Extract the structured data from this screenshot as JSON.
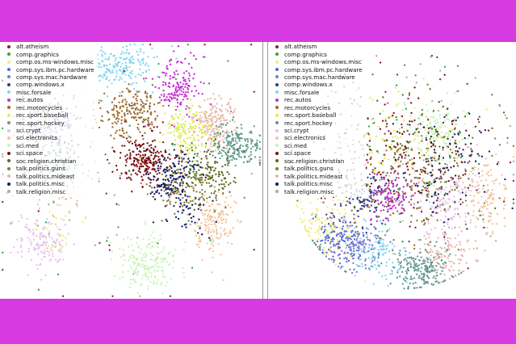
{
  "colors": {
    "background": "#d63ae0",
    "canvas": "#ffffff"
  },
  "classes": [
    {
      "name": "alt.atheism",
      "color": "#8c1c4a"
    },
    {
      "name": "comp.graphics",
      "color": "#2fa73b"
    },
    {
      "name": "comp.os.ms-windows.misc",
      "color": "#f3ed7c"
    },
    {
      "name": "comp.sys.ibm.pc.hardware",
      "color": "#4f6cd6"
    },
    {
      "name": "comp.sys.mac.hardware",
      "color": "#7e7ad8"
    },
    {
      "name": "comp.windows.x",
      "color": "#2f3f86"
    },
    {
      "name": "misc.forsale",
      "color": "#83d6ee"
    },
    {
      "name": "rec.autos",
      "color": "#c42ed4"
    },
    {
      "name": "rec.motorcycles",
      "color": "#9a6a2a"
    },
    {
      "name": "rec.sport.baseball",
      "color": "#dcee5a"
    },
    {
      "name": "rec.sport.hockey",
      "color": "#5f9a8e"
    },
    {
      "name": "sci.crypt",
      "color": "#e7c0f0"
    },
    {
      "name": "sci.electronics",
      "color": "#f3c49a"
    },
    {
      "name": "sci.med",
      "color": "#c9f4b6"
    },
    {
      "name": "sci.space",
      "color": "#7a0e10"
    },
    {
      "name": "soc.religion.christian",
      "color": "#5b6b1e"
    },
    {
      "name": "talk.politics.guns",
      "color": "#8a7a30"
    },
    {
      "name": "talk.politics.mideast",
      "color": "#e9b6b0"
    },
    {
      "name": "talk.politics.misc",
      "color": "#101a66"
    },
    {
      "name": "talk.religion.misc",
      "color": "#aaaaaa"
    }
  ],
  "chart_data": [
    {
      "type": "scatter",
      "title": "",
      "xlabel": "",
      "ylabel": "",
      "axes": "hidden",
      "grid": false,
      "legend_position": "top-left",
      "x_range": [
        0,
        1
      ],
      "y_range": [
        0,
        1
      ],
      "series": [
        {
          "name": "alt.atheism",
          "clusters": [
            [
              0.5,
              0.45,
              0.3,
              0.3,
              40
            ]
          ]
        },
        {
          "name": "comp.graphics",
          "clusters": [
            [
              0.23,
              0.47,
              0.05,
              0.05,
              60
            ],
            [
              0.5,
              0.5,
              0.3,
              0.3,
              30
            ]
          ]
        },
        {
          "name": "comp.os.ms-windows.misc",
          "clusters": [
            [
              0.15,
              0.3,
              0.06,
              0.06,
              70
            ],
            [
              0.22,
              0.75,
              0.04,
              0.04,
              30
            ]
          ]
        },
        {
          "name": "comp.sys.ibm.pc.hardware",
          "clusters": [
            [
              0.19,
              0.29,
              0.05,
              0.04,
              60
            ]
          ]
        },
        {
          "name": "comp.sys.mac.hardware",
          "clusters": [
            [
              0.15,
              0.34,
              0.05,
              0.05,
              60
            ]
          ]
        },
        {
          "name": "comp.windows.x",
          "clusters": [
            [
              0.22,
              0.4,
              0.05,
              0.05,
              60
            ]
          ]
        },
        {
          "name": "misc.forsale",
          "clusters": [
            [
              0.45,
              0.1,
              0.07,
              0.04,
              200
            ]
          ]
        },
        {
          "name": "rec.autos",
          "clusters": [
            [
              0.68,
              0.17,
              0.04,
              0.06,
              160
            ]
          ]
        },
        {
          "name": "rec.motorcycles",
          "clusters": [
            [
              0.5,
              0.28,
              0.06,
              0.05,
              200
            ]
          ]
        },
        {
          "name": "rec.sport.baseball",
          "clusters": [
            [
              0.72,
              0.35,
              0.05,
              0.05,
              180
            ]
          ]
        },
        {
          "name": "rec.sport.hockey",
          "clusters": [
            [
              0.9,
              0.4,
              0.05,
              0.04,
              200
            ]
          ]
        },
        {
          "name": "sci.crypt",
          "clusters": [
            [
              0.16,
              0.78,
              0.05,
              0.05,
              140
            ]
          ]
        },
        {
          "name": "sci.electronics",
          "clusters": [
            [
              0.82,
              0.7,
              0.04,
              0.06,
              160
            ],
            [
              0.22,
              0.6,
              0.05,
              0.05,
              40
            ]
          ]
        },
        {
          "name": "sci.med",
          "clusters": [
            [
              0.56,
              0.86,
              0.06,
              0.06,
              200
            ]
          ]
        },
        {
          "name": "sci.space",
          "clusters": [
            [
              0.55,
              0.46,
              0.05,
              0.05,
              220
            ]
          ]
        },
        {
          "name": "soc.religion.christian",
          "clusters": [
            [
              0.8,
              0.52,
              0.05,
              0.05,
              140
            ]
          ]
        },
        {
          "name": "talk.politics.guns",
          "clusters": [
            [
              0.7,
              0.55,
              0.05,
              0.05,
              120
            ]
          ]
        },
        {
          "name": "talk.politics.mideast",
          "clusters": [
            [
              0.82,
              0.31,
              0.04,
              0.05,
              180
            ]
          ]
        },
        {
          "name": "talk.politics.misc",
          "clusters": [
            [
              0.66,
              0.52,
              0.05,
              0.06,
              160
            ],
            [
              0.72,
              0.66,
              0.04,
              0.04,
              40
            ]
          ]
        },
        {
          "name": "talk.religion.misc",
          "clusters": [
            [
              0.3,
              0.55,
              0.2,
              0.2,
              40
            ]
          ]
        }
      ]
    },
    {
      "type": "scatter",
      "title": "",
      "xlabel": "",
      "ylabel": "",
      "axes": "hidden",
      "grid": false,
      "legend_position": "top-left",
      "x_range": [
        0,
        1
      ],
      "y_range": [
        0,
        1
      ],
      "series": [
        {
          "name": "alt.atheism",
          "clusters": [
            [
              0.55,
              0.45,
              0.2,
              0.2,
              80
            ]
          ]
        },
        {
          "name": "comp.graphics",
          "clusters": [
            [
              0.55,
              0.45,
              0.22,
              0.22,
              60
            ]
          ]
        },
        {
          "name": "comp.os.ms-windows.misc",
          "clusters": [
            [
              0.25,
              0.72,
              0.07,
              0.07,
              150
            ]
          ]
        },
        {
          "name": "comp.sys.ibm.pc.hardware",
          "clusters": [
            [
              0.28,
              0.76,
              0.06,
              0.05,
              150
            ]
          ]
        },
        {
          "name": "comp.sys.mac.hardware",
          "clusters": [
            [
              0.35,
              0.8,
              0.05,
              0.05,
              120
            ]
          ]
        },
        {
          "name": "comp.windows.x",
          "clusters": [
            [
              0.4,
              0.6,
              0.06,
              0.06,
              120
            ]
          ]
        },
        {
          "name": "misc.forsale",
          "clusters": [
            [
              0.45,
              0.82,
              0.06,
              0.05,
              120
            ]
          ]
        },
        {
          "name": "rec.autos",
          "clusters": [
            [
              0.5,
              0.6,
              0.05,
              0.05,
              120
            ]
          ]
        },
        {
          "name": "rec.motorcycles",
          "clusters": [
            [
              0.55,
              0.5,
              0.18,
              0.18,
              120
            ]
          ]
        },
        {
          "name": "rec.sport.baseball",
          "clusters": [
            [
              0.52,
              0.4,
              0.1,
              0.1,
              80
            ]
          ]
        },
        {
          "name": "rec.sport.hockey",
          "clusters": [
            [
              0.62,
              0.88,
              0.06,
              0.04,
              200
            ]
          ]
        },
        {
          "name": "sci.crypt",
          "clusters": [
            [
              0.72,
              0.62,
              0.06,
              0.06,
              120
            ]
          ]
        },
        {
          "name": "sci.electronics",
          "clusters": [
            [
              0.88,
              0.6,
              0.05,
              0.08,
              120
            ]
          ]
        },
        {
          "name": "sci.med",
          "clusters": [
            [
              0.68,
              0.35,
              0.07,
              0.06,
              140
            ]
          ]
        },
        {
          "name": "sci.space",
          "clusters": [
            [
              0.55,
              0.42,
              0.15,
              0.12,
              140
            ]
          ]
        },
        {
          "name": "soc.religion.christian",
          "clusters": [
            [
              0.6,
              0.45,
              0.14,
              0.12,
              100
            ]
          ]
        },
        {
          "name": "talk.politics.guns",
          "clusters": [
            [
              0.62,
              0.55,
              0.12,
              0.1,
              100
            ]
          ]
        },
        {
          "name": "talk.politics.mideast",
          "clusters": [
            [
              0.7,
              0.83,
              0.06,
              0.05,
              120
            ]
          ]
        },
        {
          "name": "talk.politics.misc",
          "clusters": [
            [
              0.7,
              0.5,
              0.1,
              0.1,
              100
            ]
          ]
        },
        {
          "name": "talk.religion.misc",
          "clusters": [
            [
              0.6,
              0.5,
              0.25,
              0.25,
              60
            ]
          ]
        }
      ]
    }
  ]
}
